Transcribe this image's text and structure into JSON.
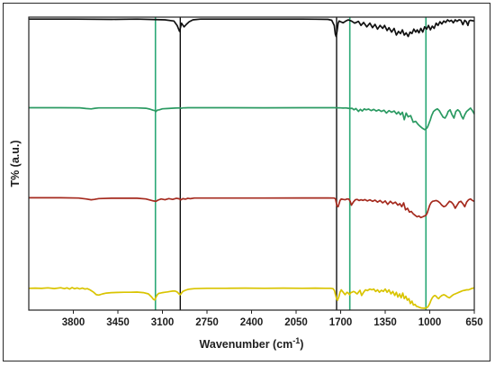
{
  "chart_data": {
    "type": "line",
    "title": "",
    "xlabel_main": "Wavenumber (cm",
    "xlabel_sup": "-1",
    "xlabel_close": ")",
    "ylabel": "T% (a.u.)",
    "x_reversed": true,
    "xlim": [
      4150,
      650
    ],
    "ylim": [
      0,
      1
    ],
    "grid": false,
    "legend": "none",
    "x_ticks": [
      3800,
      3450,
      3100,
      2750,
      2400,
      2050,
      1700,
      1350,
      1000,
      650
    ],
    "x_tick_labels": [
      "3800",
      "3450",
      "3100",
      "2750",
      "2400",
      "2050",
      "1700",
      "1350",
      "1000",
      "650"
    ],
    "vertical_markers": [
      {
        "x": 3155,
        "color": "#2aa876"
      },
      {
        "x": 2960,
        "color": "#111111"
      },
      {
        "x": 1732,
        "color": "#111111"
      },
      {
        "x": 1628,
        "color": "#2aa876"
      },
      {
        "x": 1030,
        "color": "#2aa876"
      }
    ],
    "series": [
      {
        "color": "#111111",
        "x": [
          4150,
          3800,
          3500,
          3300,
          3180,
          3080,
          3010,
          2985,
          2966,
          2950,
          2930,
          2915,
          2890,
          2860,
          2800,
          2600,
          2400,
          2200,
          2000,
          1900,
          1800,
          1770,
          1750,
          1742,
          1735,
          1728,
          1720,
          1712,
          1700,
          1680,
          1660,
          1640,
          1615,
          1590,
          1560,
          1540,
          1520,
          1495,
          1470,
          1450,
          1430,
          1410,
          1390,
          1370,
          1355,
          1335,
          1320,
          1300,
          1280,
          1262,
          1245,
          1230,
          1215,
          1200,
          1185,
          1170,
          1155,
          1140,
          1125,
          1110,
          1098,
          1085,
          1070,
          1055,
          1040,
          1025,
          1010,
          995,
          980,
          965,
          950,
          935,
          920,
          905,
          890,
          875,
          860,
          845,
          830,
          815,
          800,
          785,
          770,
          755,
          740,
          725,
          712,
          700,
          690,
          680,
          668,
          650
        ],
        "y": [
          0.985,
          0.985,
          0.982,
          0.985,
          0.98,
          0.975,
          0.96,
          0.9,
          0.82,
          0.93,
          0.88,
          0.91,
          0.95,
          0.975,
          0.985,
          0.985,
          0.985,
          0.985,
          0.985,
          0.984,
          0.982,
          0.97,
          0.9,
          0.78,
          0.75,
          0.82,
          0.93,
          0.96,
          0.95,
          0.935,
          0.96,
          0.975,
          0.96,
          0.93,
          0.955,
          0.9,
          0.94,
          0.88,
          0.93,
          0.87,
          0.915,
          0.85,
          0.9,
          0.86,
          0.9,
          0.83,
          0.87,
          0.81,
          0.86,
          0.77,
          0.82,
          0.79,
          0.84,
          0.77,
          0.8,
          0.75,
          0.81,
          0.79,
          0.85,
          0.81,
          0.84,
          0.8,
          0.86,
          0.81,
          0.88,
          0.85,
          0.9,
          0.84,
          0.89,
          0.86,
          0.93,
          0.9,
          0.95,
          0.92,
          0.96,
          0.94,
          0.975,
          0.955,
          0.97,
          0.935,
          0.975,
          0.955,
          0.975,
          0.97,
          0.91,
          0.97,
          0.95,
          0.9,
          0.96,
          0.97,
          0.965,
          0.96
        ]
      },
      {
        "color": "#2b9a62",
        "x": [
          4150,
          3900,
          3750,
          3700,
          3660,
          3630,
          3600,
          3500,
          3400,
          3300,
          3230,
          3200,
          3175,
          3160,
          3150,
          3140,
          3125,
          3100,
          3060,
          3000,
          2965,
          2950,
          2940,
          2920,
          2900,
          2850,
          2600,
          2300,
          2000,
          1800,
          1750,
          1720,
          1700,
          1680,
          1660,
          1640,
          1625,
          1610,
          1595,
          1580,
          1560,
          1545,
          1530,
          1515,
          1500,
          1480,
          1460,
          1440,
          1420,
          1400,
          1380,
          1360,
          1340,
          1320,
          1300,
          1280,
          1260,
          1245,
          1230,
          1215,
          1200,
          1185,
          1170,
          1150,
          1130,
          1110,
          1090,
          1075,
          1060,
          1050,
          1040,
          1030,
          1022,
          1015,
          1005,
          995,
          985,
          970,
          955,
          940,
          925,
          910,
          895,
          880,
          865,
          855,
          840,
          825,
          810,
          795,
          780,
          765,
          750,
          738,
          725,
          710,
          695,
          680,
          665,
          650
        ],
        "y": [
          0.745,
          0.745,
          0.743,
          0.735,
          0.73,
          0.738,
          0.742,
          0.742,
          0.742,
          0.742,
          0.738,
          0.728,
          0.715,
          0.71,
          0.7,
          0.715,
          0.72,
          0.732,
          0.735,
          0.74,
          0.742,
          0.738,
          0.742,
          0.744,
          0.745,
          0.745,
          0.745,
          0.744,
          0.745,
          0.745,
          0.745,
          0.744,
          0.742,
          0.74,
          0.742,
          0.738,
          0.735,
          0.738,
          0.72,
          0.735,
          0.7,
          0.725,
          0.705,
          0.73,
          0.72,
          0.728,
          0.71,
          0.725,
          0.705,
          0.72,
          0.7,
          0.715,
          0.68,
          0.71,
          0.69,
          0.705,
          0.67,
          0.695,
          0.66,
          0.69,
          0.6,
          0.68,
          0.635,
          0.65,
          0.57,
          0.58,
          0.54,
          0.52,
          0.5,
          0.49,
          0.48,
          0.49,
          0.5,
          0.52,
          0.56,
          0.6,
          0.65,
          0.7,
          0.72,
          0.73,
          0.71,
          0.67,
          0.63,
          0.62,
          0.66,
          0.7,
          0.72,
          0.66,
          0.62,
          0.7,
          0.72,
          0.7,
          0.64,
          0.61,
          0.66,
          0.7,
          0.72,
          0.74,
          0.71,
          0.67
        ]
      },
      {
        "color": "#a52a1e",
        "x": [
          4150,
          3900,
          3760,
          3700,
          3660,
          3635,
          3600,
          3500,
          3400,
          3300,
          3230,
          3200,
          3170,
          3150,
          3135,
          3110,
          3080,
          3050,
          3020,
          2990,
          2970,
          2955,
          2940,
          2920,
          2900,
          2880,
          2850,
          2600,
          2300,
          2000,
          1800,
          1750,
          1740,
          1735,
          1728,
          1720,
          1712,
          1705,
          1695,
          1680,
          1665,
          1650,
          1635,
          1625,
          1615,
          1600,
          1585,
          1570,
          1555,
          1540,
          1525,
          1510,
          1490,
          1470,
          1450,
          1430,
          1410,
          1390,
          1370,
          1350,
          1330,
          1310,
          1290,
          1270,
          1250,
          1235,
          1220,
          1205,
          1190,
          1175,
          1160,
          1145,
          1130,
          1115,
          1100,
          1085,
          1070,
          1055,
          1042,
          1030,
          1020,
          1010,
          1000,
          990,
          978,
          965,
          950,
          935,
          920,
          905,
          890,
          875,
          860,
          845,
          830,
          815,
          800,
          785,
          770,
          755,
          740,
          725,
          710,
          695,
          680,
          665,
          650
        ],
        "y": [
          0.495,
          0.495,
          0.492,
          0.48,
          0.47,
          0.475,
          0.485,
          0.49,
          0.49,
          0.49,
          0.48,
          0.468,
          0.455,
          0.45,
          0.465,
          0.48,
          0.47,
          0.485,
          0.475,
          0.49,
          0.482,
          0.47,
          0.484,
          0.478,
          0.49,
          0.484,
          0.492,
          0.492,
          0.492,
          0.493,
          0.493,
          0.492,
          0.48,
          0.44,
          0.39,
          0.38,
          0.42,
          0.46,
          0.48,
          0.475,
          0.47,
          0.48,
          0.478,
          0.45,
          0.4,
          0.44,
          0.47,
          0.475,
          0.46,
          0.47,
          0.462,
          0.472,
          0.455,
          0.47,
          0.45,
          0.465,
          0.44,
          0.46,
          0.43,
          0.455,
          0.41,
          0.45,
          0.42,
          0.44,
          0.4,
          0.42,
          0.38,
          0.43,
          0.34,
          0.36,
          0.31,
          0.32,
          0.29,
          0.27,
          0.25,
          0.26,
          0.24,
          0.25,
          0.26,
          0.27,
          0.3,
          0.35,
          0.4,
          0.43,
          0.45,
          0.455,
          0.46,
          0.45,
          0.43,
          0.4,
          0.38,
          0.39,
          0.42,
          0.45,
          0.44,
          0.41,
          0.36,
          0.4,
          0.44,
          0.45,
          0.42,
          0.38,
          0.44,
          0.47,
          0.48,
          0.46,
          0.45
        ]
      },
      {
        "color": "#d9c400",
        "x": [
          4150,
          4100,
          4050,
          4000,
          3950,
          3900,
          3870,
          3850,
          3830,
          3810,
          3790,
          3770,
          3750,
          3730,
          3710,
          3690,
          3670,
          3640,
          3620,
          3600,
          3570,
          3540,
          3500,
          3450,
          3400,
          3350,
          3300,
          3250,
          3210,
          3185,
          3170,
          3160,
          3150,
          3140,
          3130,
          3115,
          3100,
          3080,
          3060,
          3040,
          3020,
          3000,
          2985,
          2970,
          2960,
          2950,
          2940,
          2920,
          2900,
          2880,
          2850,
          2750,
          2600,
          2450,
          2300,
          2150,
          2000,
          1900,
          1820,
          1780,
          1760,
          1748,
          1740,
          1732,
          1725,
          1715,
          1705,
          1695,
          1680,
          1665,
          1650,
          1640,
          1630,
          1620,
          1610,
          1600,
          1590,
          1580,
          1570,
          1560,
          1548,
          1535,
          1520,
          1505,
          1490,
          1470,
          1455,
          1440,
          1425,
          1410,
          1395,
          1380,
          1365,
          1350,
          1335,
          1320,
          1305,
          1290,
          1275,
          1262,
          1250,
          1237,
          1225,
          1212,
          1200,
          1188,
          1176,
          1164,
          1152,
          1140,
          1128,
          1116,
          1104,
          1092,
          1080,
          1068,
          1056,
          1044,
          1032,
          1020,
          1010,
          1000,
          990,
          980,
          970,
          960,
          950,
          940,
          930,
          920,
          905,
          890,
          875,
          860,
          845,
          830,
          815,
          800,
          785,
          770,
          755,
          740,
          725,
          710,
          695,
          680,
          665,
          650
        ],
        "y": [
          0.25,
          0.252,
          0.248,
          0.255,
          0.246,
          0.256,
          0.245,
          0.255,
          0.24,
          0.258,
          0.244,
          0.254,
          0.242,
          0.252,
          0.24,
          0.245,
          0.23,
          0.2,
          0.17,
          0.165,
          0.18,
          0.19,
          0.195,
          0.198,
          0.2,
          0.2,
          0.202,
          0.195,
          0.18,
          0.14,
          0.11,
          0.105,
          0.14,
          0.17,
          0.185,
          0.19,
          0.195,
          0.2,
          0.205,
          0.21,
          0.215,
          0.215,
          0.205,
          0.18,
          0.17,
          0.19,
          0.21,
          0.225,
          0.235,
          0.24,
          0.245,
          0.25,
          0.25,
          0.252,
          0.25,
          0.252,
          0.25,
          0.252,
          0.25,
          0.25,
          0.245,
          0.22,
          0.17,
          0.12,
          0.1,
          0.14,
          0.2,
          0.23,
          0.2,
          0.17,
          0.2,
          0.19,
          0.17,
          0.195,
          0.2,
          0.21,
          0.205,
          0.19,
          0.18,
          0.2,
          0.225,
          0.16,
          0.2,
          0.23,
          0.22,
          0.24,
          0.23,
          0.24,
          0.21,
          0.23,
          0.2,
          0.225,
          0.21,
          0.24,
          0.2,
          0.23,
          0.18,
          0.21,
          0.16,
          0.2,
          0.14,
          0.18,
          0.13,
          0.19,
          0.12,
          0.15,
          0.1,
          0.12,
          0.06,
          0.09,
          0.04,
          0.05,
          0.025,
          0.02,
          0.01,
          0.005,
          0.002,
          0.0,
          0.005,
          0.01,
          0.03,
          0.06,
          0.1,
          0.13,
          0.15,
          0.16,
          0.15,
          0.13,
          0.12,
          0.14,
          0.16,
          0.17,
          0.16,
          0.14,
          0.13,
          0.15,
          0.17,
          0.18,
          0.19,
          0.2,
          0.21,
          0.22,
          0.225,
          0.23,
          0.23,
          0.24,
          0.25,
          0.255
        ]
      }
    ]
  }
}
